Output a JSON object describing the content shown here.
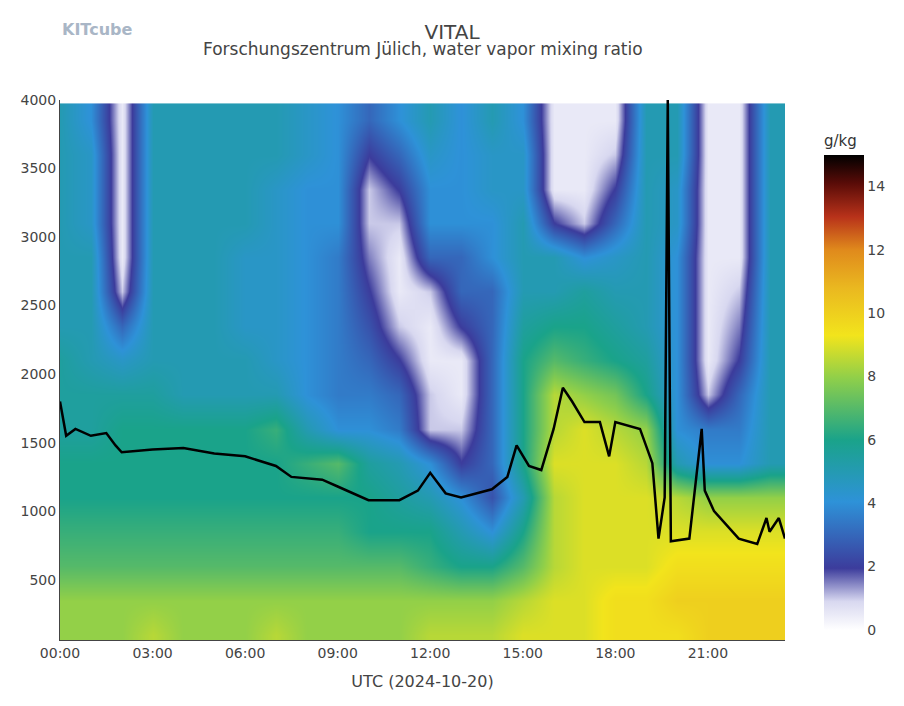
{
  "chart_data": {
    "type": "heatmap",
    "title": "VITAL",
    "subtitle": "Forschungszentrum Jülich, water vapor mixing ratio",
    "logo_text": "KITcube",
    "xlabel": "UTC (2024-10-20)",
    "xlim": [
      0,
      23.5
    ],
    "xticks": [
      {
        "value": 0,
        "label": "00:00"
      },
      {
        "value": 3,
        "label": "03:00"
      },
      {
        "value": 6,
        "label": "06:00"
      },
      {
        "value": 9,
        "label": "09:00"
      },
      {
        "value": 12,
        "label": "12:00"
      },
      {
        "value": 15,
        "label": "15:00"
      },
      {
        "value": 18,
        "label": "18:00"
      },
      {
        "value": 21,
        "label": "21:00"
      }
    ],
    "ylim": [
      60,
      4000
    ],
    "yticks": [
      500,
      1000,
      1500,
      2000,
      2500,
      3000,
      3500,
      4000
    ],
    "grid": false,
    "x": [
      0,
      1,
      2,
      3,
      4,
      5,
      6,
      7,
      8,
      9,
      10,
      11,
      12,
      13,
      14,
      15,
      16,
      17,
      18,
      19,
      20,
      21,
      22,
      23
    ],
    "y": [
      100,
      350,
      600,
      850,
      1100,
      1350,
      1600,
      1850,
      2100,
      2350,
      2600,
      2850,
      3100,
      3350,
      3600,
      3850
    ],
    "z": [
      [
        8,
        8,
        8,
        8.5,
        8,
        8,
        8,
        8.5,
        8,
        8,
        8,
        8,
        8.5,
        8.5,
        8.5,
        9,
        9,
        9,
        9.5,
        9.5,
        9.5,
        10,
        10,
        10
      ],
      [
        8,
        8,
        8,
        8,
        8,
        8,
        8,
        8,
        8,
        8,
        8,
        8,
        8,
        8,
        8,
        8.5,
        9,
        9,
        9.5,
        9.5,
        10,
        10,
        10,
        10
      ],
      [
        7,
        7,
        7,
        7,
        7,
        7,
        7,
        7,
        7,
        7,
        7,
        7,
        6.5,
        6,
        6,
        7,
        8.5,
        9,
        9,
        9,
        9.5,
        9.5,
        9.5,
        9.5
      ],
      [
        6.5,
        6.5,
        6.5,
        6.5,
        6.5,
        6.5,
        6.5,
        6.5,
        6.5,
        6.5,
        6,
        6,
        6,
        5,
        4,
        6,
        8.5,
        9,
        9,
        9,
        9,
        9,
        9,
        9
      ],
      [
        6,
        6,
        6,
        6,
        6,
        6,
        6,
        6,
        6,
        6,
        6,
        5.5,
        5,
        4,
        2.5,
        5,
        8.5,
        9,
        9,
        9,
        8.5,
        8,
        8,
        8
      ],
      [
        6,
        6,
        6,
        6,
        6,
        6,
        6,
        6,
        6.5,
        7,
        5.5,
        5,
        4,
        2,
        3,
        6,
        9,
        9,
        9,
        8.5,
        5,
        4,
        4,
        5
      ],
      [
        5.5,
        5.5,
        6,
        6,
        6,
        6,
        6,
        6.5,
        5,
        4,
        4,
        3.5,
        1,
        1,
        3,
        6,
        8.5,
        9,
        8.5,
        8,
        4,
        3.5,
        3.5,
        5
      ],
      [
        5.5,
        5.5,
        5.5,
        5.5,
        5,
        5,
        5,
        5,
        4,
        3.5,
        3.5,
        3,
        1,
        0.5,
        3,
        6,
        8.5,
        8,
        7.5,
        6,
        4,
        1,
        3,
        5
      ],
      [
        5.5,
        5,
        4.5,
        5,
        5,
        5,
        5,
        4.5,
        4,
        3.5,
        3,
        2,
        0.5,
        0.5,
        3,
        6,
        7,
        6.5,
        6,
        5.5,
        4,
        0.5,
        2,
        5
      ],
      [
        5,
        5,
        3,
        5,
        5,
        5,
        4.5,
        4.5,
        4,
        3.5,
        2.5,
        1,
        0.5,
        2,
        3,
        5.5,
        6,
        6,
        5.5,
        5,
        4,
        0.5,
        1.5,
        5
      ],
      [
        5,
        5,
        1,
        5,
        5,
        5,
        4.5,
        4.5,
        4,
        3.5,
        2,
        0.5,
        1,
        3,
        3,
        5,
        5,
        5.5,
        5,
        5,
        4,
        0.5,
        1,
        5
      ],
      [
        5,
        5,
        0.5,
        5,
        5,
        5,
        4.5,
        4.5,
        4,
        3.5,
        1.5,
        0.5,
        3,
        3,
        4,
        5,
        5,
        4,
        4.5,
        5,
        4,
        0.5,
        0.5,
        5
      ],
      [
        5,
        4.5,
        0.5,
        5,
        5,
        5,
        5,
        4.5,
        4,
        4,
        1,
        1,
        4,
        4,
        4,
        5,
        2,
        1,
        3,
        5,
        4.5,
        0.5,
        0.5,
        5
      ],
      [
        5,
        4.5,
        0.5,
        5,
        5,
        5,
        5,
        4.5,
        4,
        4,
        1,
        2,
        4,
        4,
        4.5,
        4.5,
        0.5,
        0.5,
        2,
        5,
        4.5,
        0.5,
        0.5,
        5
      ],
      [
        5,
        4.5,
        0.5,
        5,
        5,
        5,
        5,
        5,
        4.5,
        4,
        2,
        3,
        4.5,
        4,
        4.5,
        4.5,
        0.5,
        0.5,
        1,
        5,
        5,
        0.5,
        0.5,
        5
      ],
      [
        5,
        4,
        0.5,
        5,
        5,
        5,
        5,
        5,
        4.5,
        4,
        3,
        4,
        5,
        4,
        5,
        4,
        0.5,
        0.5,
        0.5,
        5,
        5,
        0.5,
        0.5,
        5
      ]
    ],
    "colorbar": {
      "title": "g/kg",
      "zlim": [
        0,
        15
      ],
      "ticks": [
        0,
        2,
        4,
        6,
        8,
        10,
        12,
        14
      ]
    },
    "line": {
      "color": "#000000",
      "line_style": "solid",
      "x": [
        0,
        0.2,
        0.5,
        1,
        1.5,
        1.8,
        2,
        3,
        4,
        5,
        6,
        7,
        7.5,
        8.5,
        9,
        10,
        11,
        11.6,
        12,
        12.5,
        13,
        14,
        14.5,
        14.8,
        15.2,
        15.6,
        16,
        16.3,
        16.6,
        17,
        17.5,
        17.8,
        18,
        18.8,
        19.2,
        19.4,
        19.6,
        19.7,
        19.8,
        20.4,
        20.8,
        20.9,
        21.2,
        22,
        22.6,
        22.9,
        23,
        23.3,
        23.5
      ],
      "values": [
        1800,
        1550,
        1600,
        1550,
        1570,
        1480,
        1430,
        1450,
        1460,
        1420,
        1400,
        1330,
        1250,
        1230,
        1180,
        1080,
        1080,
        1150,
        1280,
        1130,
        1100,
        1160,
        1250,
        1480,
        1330,
        1300,
        1600,
        1900,
        1800,
        1650,
        1650,
        1400,
        1650,
        1600,
        1350,
        800,
        1100,
        4000,
        780,
        800,
        1600,
        1150,
        1000,
        800,
        760,
        950,
        850,
        950,
        800
      ]
    },
    "legend": "none"
  }
}
